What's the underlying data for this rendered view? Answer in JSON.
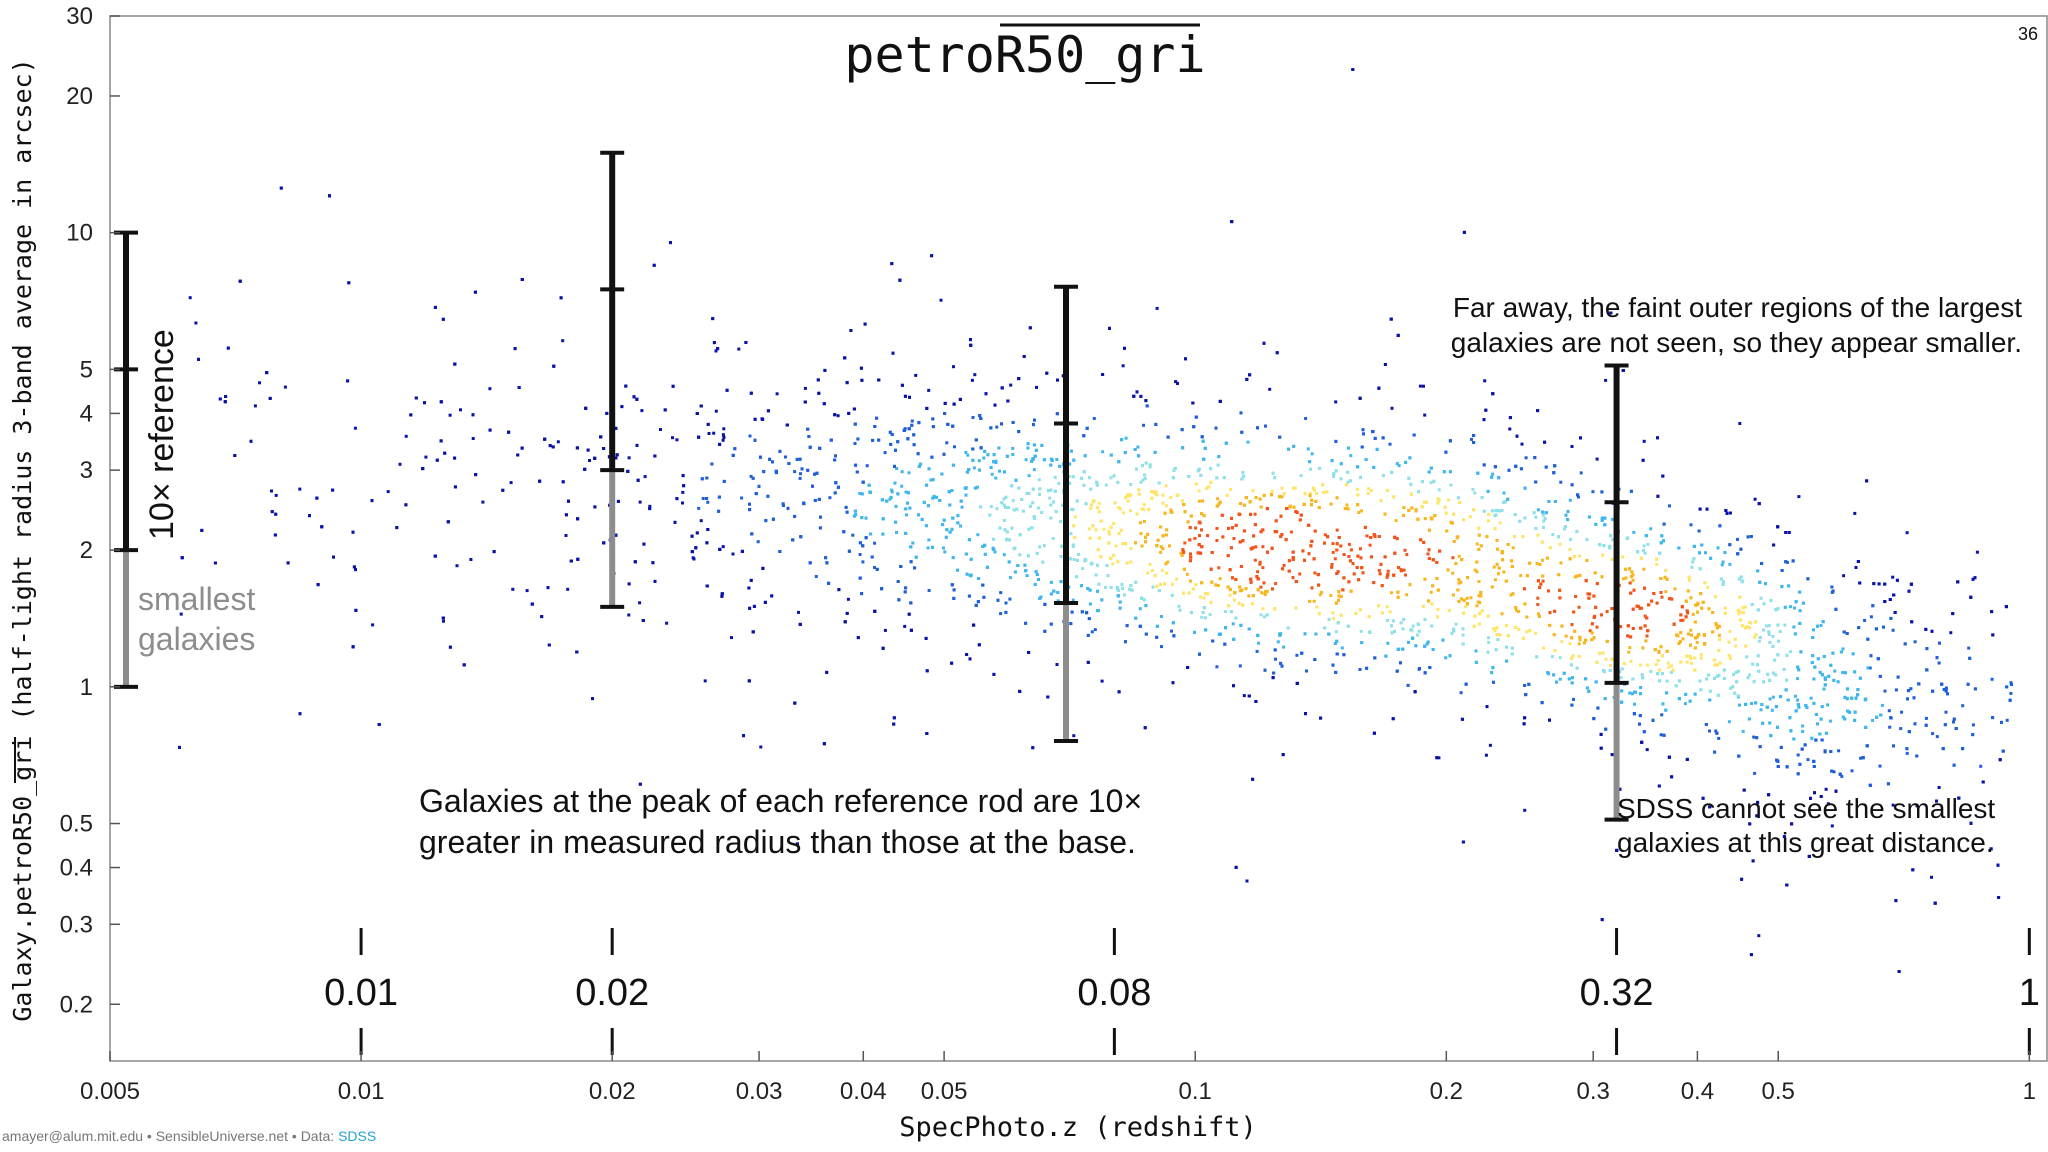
{
  "page_number": "36",
  "credit": {
    "text": "amayer@alum.mit.edu • SensibleUniverse.net • Data: ",
    "link": "SDSS",
    "link_color": "#2a9fd6"
  },
  "chart_data": {
    "type": "scatter",
    "title": "petroR50_gri",
    "xlabel": "SpecPhoto.z (redshift)",
    "ylabel": "Galaxy.petroR50_gri (half-light radius 3-band average in arcsec)",
    "x_scale": "log",
    "y_scale": "log",
    "xlim": [
      0.005,
      1.05
    ],
    "ylim": [
      0.15,
      30
    ],
    "x_ticks": [
      {
        "value": 0.005,
        "label": "0.005"
      },
      {
        "value": 0.01,
        "label": "0.01"
      },
      {
        "value": 0.02,
        "label": "0.02"
      },
      {
        "value": 0.03,
        "label": "0.03"
      },
      {
        "value": 0.04,
        "label": "0.04"
      },
      {
        "value": 0.05,
        "label": "0.05"
      },
      {
        "value": 0.1,
        "label": "0.1"
      },
      {
        "value": 0.2,
        "label": "0.2"
      },
      {
        "value": 0.3,
        "label": "0.3"
      },
      {
        "value": 0.4,
        "label": "0.4"
      },
      {
        "value": 0.5,
        "label": "0.5"
      },
      {
        "value": 1,
        "label": "1"
      }
    ],
    "y_ticks": [
      {
        "value": 0.2,
        "label": "0.2"
      },
      {
        "value": 0.3,
        "label": "0.3"
      },
      {
        "value": 0.4,
        "label": "0.4"
      },
      {
        "value": 0.5,
        "label": "0.5"
      },
      {
        "value": 1,
        "label": "1"
      },
      {
        "value": 2,
        "label": "2"
      },
      {
        "value": 3,
        "label": "3"
      },
      {
        "value": 4,
        "label": "4"
      },
      {
        "value": 5,
        "label": "5"
      },
      {
        "value": 10,
        "label": "10"
      },
      {
        "value": 20,
        "label": "20"
      },
      {
        "value": 30,
        "label": "30"
      }
    ],
    "grid": false,
    "colormap": [
      "#0a12a8",
      "#1f5fd8",
      "#3fb6ec",
      "#8fe0e8",
      "#ffe46a",
      "#f7b51e",
      "#f2541a"
    ],
    "density_ridge": {
      "description_points": [
        {
          "z": 0.012,
          "r": 3.2
        },
        {
          "z": 0.02,
          "r": 3.0
        },
        {
          "z": 0.04,
          "r": 2.5
        },
        {
          "z": 0.08,
          "r": 2.3
        },
        {
          "z": 0.13,
          "r": 2.05
        },
        {
          "z": 0.2,
          "r": 1.95
        },
        {
          "z": 0.34,
          "r": 1.45
        },
        {
          "z": 0.5,
          "r": 1.05
        },
        {
          "z": 0.7,
          "r": 0.9
        }
      ],
      "peak_regions": [
        {
          "z": 0.13,
          "r": 2.0
        },
        {
          "z": 0.35,
          "r": 1.5
        }
      ]
    },
    "reference_rods": [
      {
        "x": 0.005,
        "y_base": 1.0,
        "y_mid": 2.0,
        "y_upper_mid": 5.0,
        "y_top": 10.0
      },
      {
        "x": 0.02,
        "y_base": 1.5,
        "y_mid": 3.0,
        "y_upper_mid": 7.5,
        "y_top": 15.0
      },
      {
        "x": 0.07,
        "y_base": 0.76,
        "y_mid": 1.53,
        "y_upper_mid": 3.8,
        "y_top": 7.6
      },
      {
        "x": 0.32,
        "y_base": 0.51,
        "y_mid": 1.02,
        "y_upper_mid": 2.55,
        "y_top": 5.1
      }
    ],
    "redshift_markers": [
      {
        "x": 0.01,
        "label": "0.01"
      },
      {
        "x": 0.02,
        "label": "0.02"
      },
      {
        "x": 0.08,
        "label": "0.08"
      },
      {
        "x": 0.32,
        "label": "0.32"
      },
      {
        "x": 1,
        "label": "1"
      }
    ],
    "annotations": {
      "reference_label": "10× reference",
      "smallest_label_line1": "smallest",
      "smallest_label_line2": "galaxies",
      "peak_note_line1": "Galaxies at the peak of each reference rod are 10×",
      "peak_note_line2": "greater in measured radius than those at the base.",
      "far_note_line1": "Far away, the faint outer regions of the largest",
      "far_note_line2": "galaxies are not seen, so they appear smaller.",
      "sdss_note_line1": "SDSS cannot see the smallest",
      "sdss_note_line2": "galaxies at this great distance."
    }
  }
}
